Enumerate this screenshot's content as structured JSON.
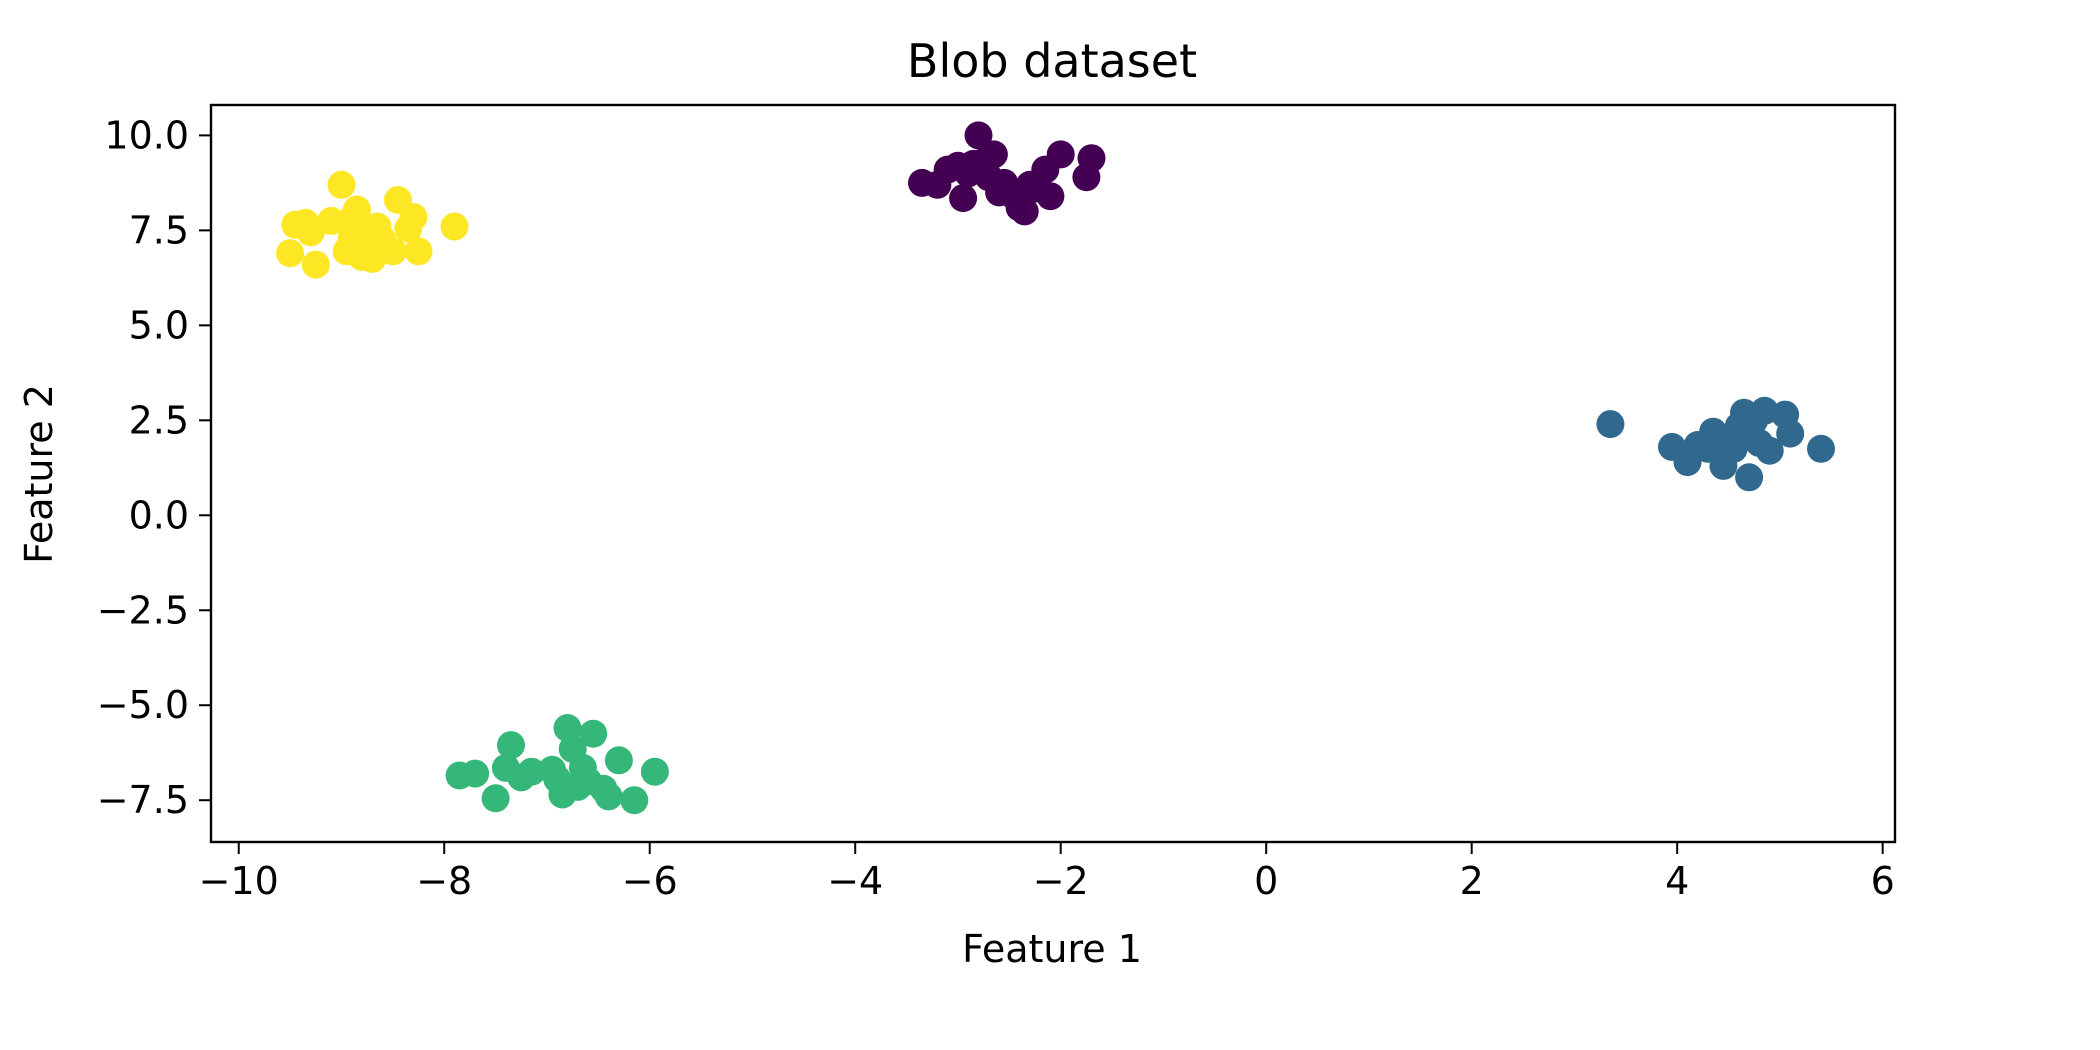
{
  "chart_data": {
    "type": "scatter",
    "title": "Blob dataset",
    "xlabel": "Feature 1",
    "ylabel": "Feature 2",
    "xlim": [
      -10.27,
      6.12
    ],
    "ylim": [
      -8.6,
      10.8
    ],
    "xticks": [
      -10,
      -8,
      -6,
      -4,
      -2,
      0,
      2,
      4,
      6
    ],
    "xtick_labels": [
      "−10",
      "−8",
      "−6",
      "−4",
      "−2",
      "0",
      "2",
      "4",
      "6"
    ],
    "yticks": [
      -7.5,
      -5.0,
      -2.5,
      0.0,
      2.5,
      5.0,
      7.5,
      10.0
    ],
    "ytick_labels": [
      "−7.5",
      "−5.0",
      "−2.5",
      "0.0",
      "2.5",
      "5.0",
      "7.5",
      "10.0"
    ],
    "grid": false,
    "series": [
      {
        "color": "#440154",
        "points": [
          [
            -2.8,
            10.0
          ],
          [
            -3.35,
            8.75
          ],
          [
            -3.2,
            8.7
          ],
          [
            -3.1,
            9.1
          ],
          [
            -3.0,
            9.2
          ],
          [
            -2.95,
            8.35
          ],
          [
            -2.85,
            9.25
          ],
          [
            -2.75,
            9.3
          ],
          [
            -2.7,
            8.9
          ],
          [
            -2.65,
            9.5
          ],
          [
            -2.55,
            8.75
          ],
          [
            -2.45,
            8.4
          ],
          [
            -2.4,
            8.1
          ],
          [
            -2.35,
            8.0
          ],
          [
            -2.3,
            8.7
          ],
          [
            -2.25,
            8.6
          ],
          [
            -2.15,
            9.1
          ],
          [
            -2.1,
            8.4
          ],
          [
            -2.0,
            9.5
          ],
          [
            -1.75,
            8.9
          ],
          [
            -1.7,
            9.4
          ],
          [
            -2.6,
            8.5
          ],
          [
            -2.9,
            9.0
          ]
        ]
      },
      {
        "color": "#31688e",
        "points": [
          [
            3.35,
            2.4
          ],
          [
            3.95,
            1.8
          ],
          [
            4.1,
            1.4
          ],
          [
            4.2,
            1.85
          ],
          [
            4.3,
            1.75
          ],
          [
            4.35,
            2.2
          ],
          [
            4.45,
            1.3
          ],
          [
            4.5,
            2.0
          ],
          [
            4.6,
            2.35
          ],
          [
            4.65,
            2.7
          ],
          [
            4.7,
            1.0
          ],
          [
            4.75,
            2.5
          ],
          [
            4.8,
            1.9
          ],
          [
            4.85,
            2.75
          ],
          [
            4.9,
            1.7
          ],
          [
            5.05,
            2.65
          ],
          [
            5.1,
            2.15
          ],
          [
            5.4,
            1.75
          ],
          [
            4.55,
            1.75
          ],
          [
            4.7,
            2.1
          ]
        ]
      },
      {
        "color": "#35b779",
        "points": [
          [
            -7.85,
            -6.85
          ],
          [
            -7.7,
            -6.8
          ],
          [
            -7.5,
            -7.45
          ],
          [
            -7.4,
            -6.65
          ],
          [
            -7.35,
            -6.05
          ],
          [
            -7.25,
            -6.9
          ],
          [
            -7.15,
            -6.75
          ],
          [
            -6.95,
            -6.7
          ],
          [
            -6.85,
            -7.35
          ],
          [
            -6.8,
            -5.6
          ],
          [
            -6.75,
            -6.15
          ],
          [
            -6.7,
            -7.15
          ],
          [
            -6.65,
            -6.65
          ],
          [
            -6.6,
            -7.0
          ],
          [
            -6.55,
            -5.75
          ],
          [
            -6.45,
            -7.2
          ],
          [
            -6.4,
            -7.4
          ],
          [
            -6.3,
            -6.45
          ],
          [
            -6.15,
            -7.5
          ],
          [
            -5.95,
            -6.75
          ],
          [
            -6.9,
            -6.95
          ]
        ]
      },
      {
        "color": "#fde725",
        "points": [
          [
            -9.5,
            6.9
          ],
          [
            -9.45,
            7.65
          ],
          [
            -9.35,
            7.7
          ],
          [
            -9.3,
            7.45
          ],
          [
            -9.25,
            6.6
          ],
          [
            -9.1,
            7.75
          ],
          [
            -9.0,
            8.7
          ],
          [
            -8.95,
            6.95
          ],
          [
            -8.9,
            7.8
          ],
          [
            -8.85,
            8.05
          ],
          [
            -8.8,
            6.8
          ],
          [
            -8.75,
            7.4
          ],
          [
            -8.7,
            6.75
          ],
          [
            -8.65,
            7.6
          ],
          [
            -8.6,
            7.25
          ],
          [
            -8.5,
            6.95
          ],
          [
            -8.45,
            8.3
          ],
          [
            -8.35,
            7.55
          ],
          [
            -8.3,
            7.85
          ],
          [
            -8.25,
            6.95
          ],
          [
            -7.9,
            7.6
          ],
          [
            -8.9,
            7.3
          ]
        ]
      }
    ]
  }
}
